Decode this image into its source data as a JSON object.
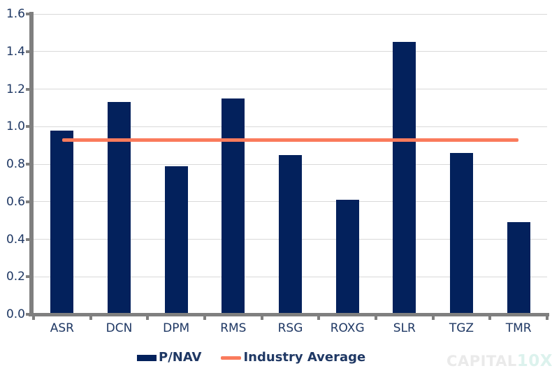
{
  "chart_data": {
    "type": "bar",
    "categories": [
      "ASR",
      "DCN",
      "DPM",
      "RMS",
      "RSG",
      "ROXG",
      "SLR",
      "TGZ",
      "TMR"
    ],
    "series": [
      {
        "name": "P/NAV",
        "type": "bar",
        "values": [
          0.98,
          1.13,
          0.79,
          1.15,
          0.85,
          0.61,
          1.45,
          0.86,
          0.49
        ],
        "color": "#03215c"
      },
      {
        "name": "Industry Average",
        "type": "line",
        "value": 0.93,
        "color": "#fa7b5c"
      }
    ],
    "title": "",
    "xlabel": "",
    "ylabel": "",
    "ylim": [
      0.0,
      1.6
    ],
    "y_ticks": [
      "0.0",
      "0.2",
      "0.4",
      "0.6",
      "0.8",
      "1.0",
      "1.2",
      "1.4",
      "1.6"
    ],
    "grid": true,
    "legend_position": "bottom"
  },
  "legend": {
    "pnav_label": "P/NAV",
    "avg_label": "Industry Average"
  },
  "watermark": {
    "part1": "CAPITAL",
    "part2": "10X"
  },
  "colors": {
    "bar": "#03215c",
    "average_line": "#fa7b5c",
    "axis": "#7f7f7f",
    "gridline": "#d9d9d9",
    "label_text": "#1f3864"
  }
}
